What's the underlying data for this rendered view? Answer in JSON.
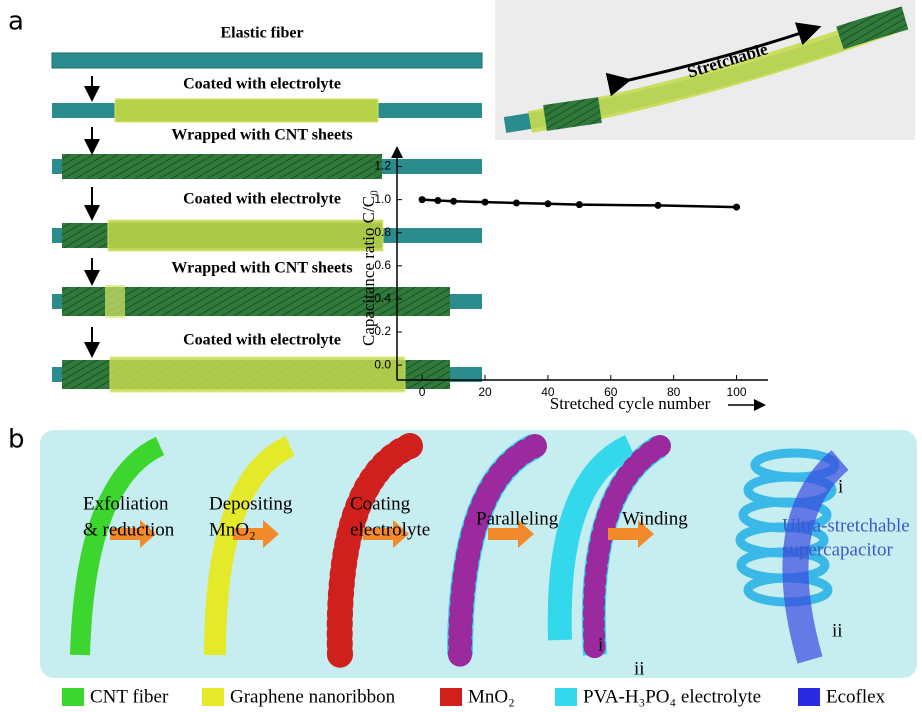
{
  "panel_a": {
    "letter": "a",
    "steps": [
      "Elastic fiber",
      "Coated with electrolyte",
      "Wrapped with CNT sheets",
      "Coated with electrolyte",
      "Wrapped with CNT sheets",
      "Coated with electrolyte"
    ],
    "photo_label": "Stretchable"
  },
  "chart_data": {
    "type": "line",
    "x_label": "Stretched cycle number",
    "y_label": "Capacitance ratio C/C₀",
    "x": [
      0,
      5,
      10,
      20,
      30,
      40,
      50,
      75,
      100
    ],
    "series": [
      {
        "color": "#000000",
        "values": [
          1.0,
          0.995,
          0.99,
          0.985,
          0.98,
          0.975,
          0.97,
          0.965,
          0.955
        ]
      }
    ],
    "xlim": [
      -8,
      110
    ],
    "ylim": [
      -0.09,
      1.3
    ],
    "xticks": [
      0,
      20,
      40,
      60,
      80,
      100
    ],
    "yticks": [
      {
        "value": 0,
        "label": "0.0"
      },
      0.2,
      0.4,
      0.6,
      0.8,
      {
        "value": 1,
        "label": "1.0"
      },
      1.2
    ]
  },
  "panel_b": {
    "letter": "b",
    "steps": [
      [
        "Exfoliation",
        "& reduction"
      ],
      [
        "Depositing",
        "MnO₂"
      ],
      [
        "Coating",
        "electrolyte"
      ],
      [
        "Paralleling"
      ],
      [
        "Winding"
      ]
    ],
    "result": [
      "Ultra-stretchable",
      "supercapacitor"
    ],
    "markers": [
      "i",
      "ii",
      "i",
      "ii"
    ],
    "legend": [
      "CNT fiber",
      "Graphene nanoribbon",
      "MnO₂",
      "PVA-H₃PO₄ electrolyte",
      "Ecoflex"
    ]
  }
}
